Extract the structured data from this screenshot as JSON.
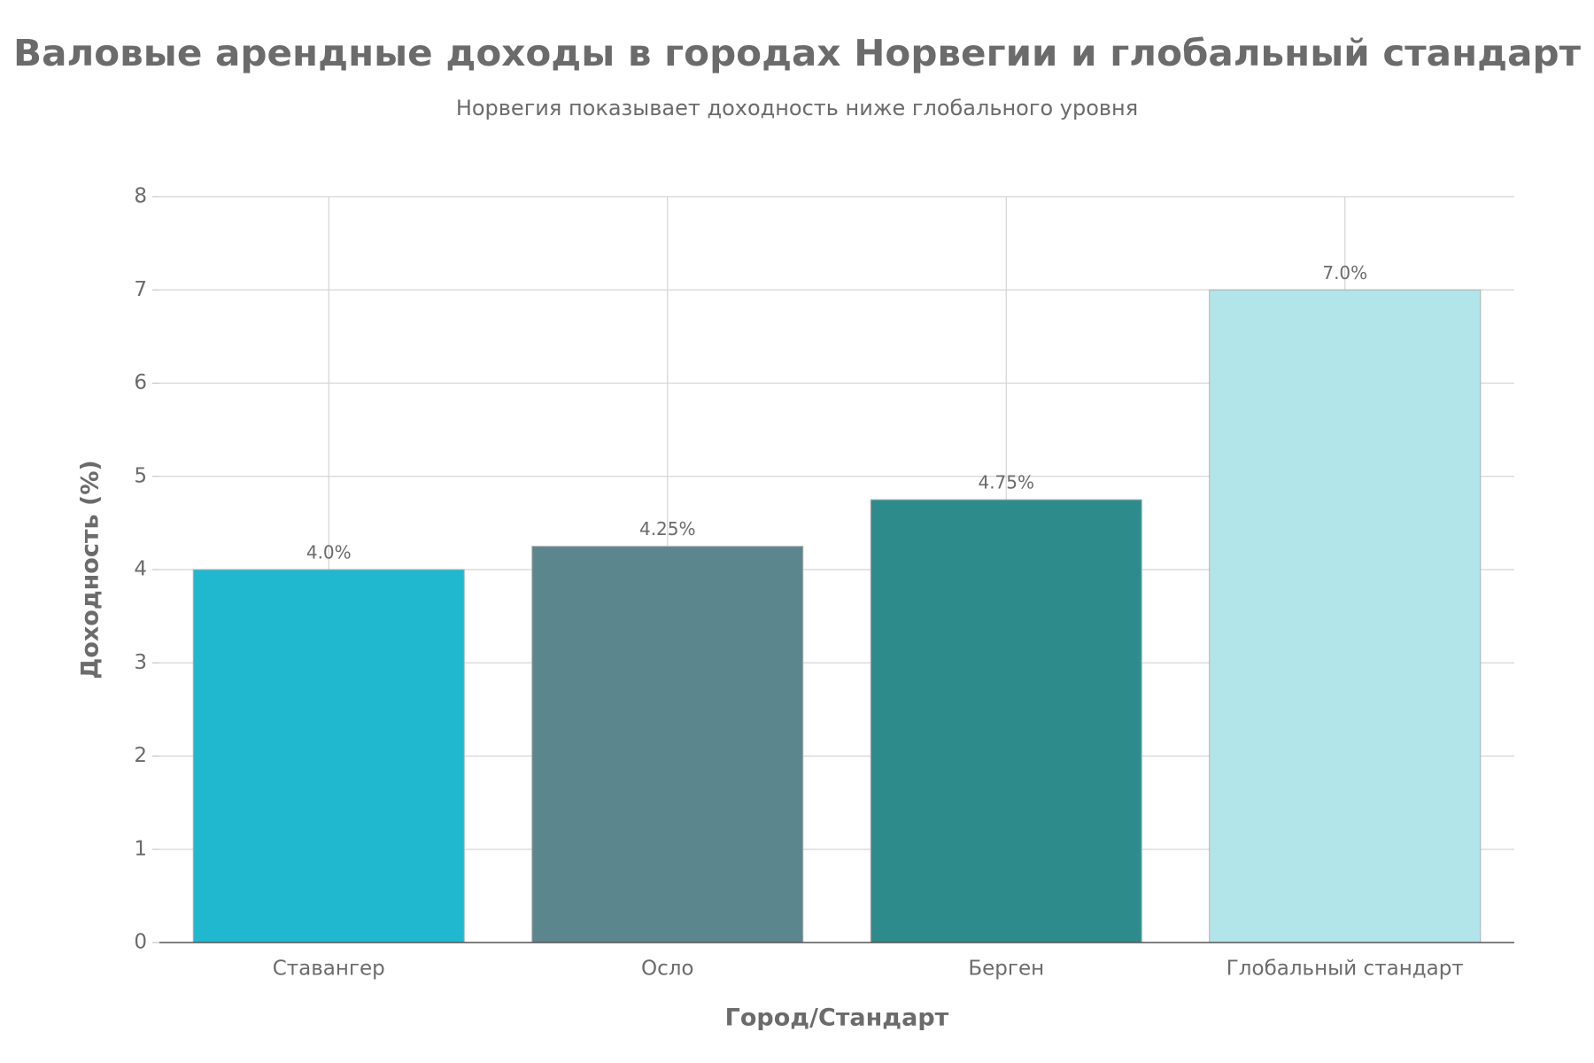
{
  "chart_data": {
    "type": "bar",
    "title": "Валовые арендные доходы в городах Норвегии и глобальный стандарт",
    "subtitle": "Норвегия показывает доходность ниже глобального уровня",
    "x_label": "Город/Стандарт",
    "y_label": "Доходность (%)",
    "categories": [
      "Ставангер",
      "Осло",
      "Берген",
      "Глобальный стандарт"
    ],
    "values": [
      4,
      4.25,
      4.75,
      7
    ],
    "value_labels": [
      "4.0%",
      "4.25%",
      "4.75%",
      "7.0%"
    ],
    "colors": [
      "#20b8cf",
      "#5b868d",
      "#2e8b8b",
      "#b2e5ea"
    ],
    "ylim": [
      0,
      8
    ],
    "yticks": [
      0,
      1,
      2,
      3,
      4,
      5,
      6,
      7,
      8
    ],
    "grid": true
  }
}
